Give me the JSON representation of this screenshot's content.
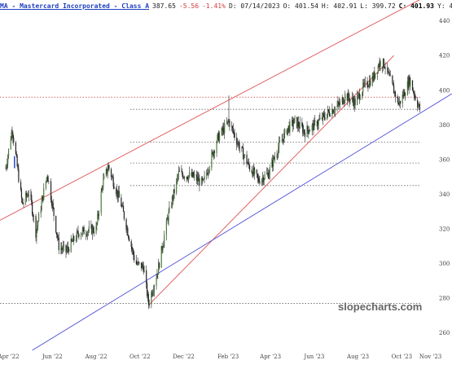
{
  "header": {
    "symbol": "MA - Mastercard Incorporated - Class A",
    "last": "387.65",
    "change": "-5.56",
    "change_pct": "-1.41%",
    "date": "D: 07/14/2023",
    "open": "O: 401.54",
    "high": "H: 402.91",
    "low": "L: 399.72",
    "close": "C: 401.93",
    "cursor_y": "Y: 4"
  },
  "watermark": "slopecharts.com",
  "chart_data": {
    "type": "candlestick",
    "x_tick_labels": [
      "Apr '22",
      "Jun '22",
      "Aug '22",
      "Oct '22",
      "Dec '22",
      "Feb '23",
      "Apr '23",
      "Jun '23",
      "Aug '23",
      "Oct '23",
      "Nov '23"
    ],
    "y_tick_labels": [
      260,
      280,
      300,
      320,
      340,
      360,
      380,
      400,
      420,
      440
    ],
    "ylim": [
      250,
      445
    ],
    "xlim": [
      "2022-03-20",
      "2023-12-10"
    ],
    "price_path": [
      [
        "2022-03-28",
        355
      ],
      [
        "2022-04-06",
        378
      ],
      [
        "2022-04-20",
        334
      ],
      [
        "2022-04-30",
        342
      ],
      [
        "2022-05-09",
        318
      ],
      [
        "2022-05-25",
        352
      ],
      [
        "2022-06-10",
        310
      ],
      [
        "2022-06-20",
        307
      ],
      [
        "2022-07-08",
        318
      ],
      [
        "2022-08-01",
        320
      ],
      [
        "2022-08-10",
        346
      ],
      [
        "2022-08-18",
        356
      ],
      [
        "2022-09-05",
        334
      ],
      [
        "2022-09-25",
        300
      ],
      [
        "2022-10-06",
        298
      ],
      [
        "2022-10-13",
        277
      ],
      [
        "2022-10-26",
        296
      ],
      [
        "2022-11-08",
        325
      ],
      [
        "2022-11-24",
        352
      ],
      [
        "2022-12-15",
        350
      ],
      [
        "2022-12-28",
        346
      ],
      [
        "2023-01-17",
        372
      ],
      [
        "2023-02-02",
        382
      ],
      [
        "2023-02-14",
        370
      ],
      [
        "2023-03-01",
        357
      ],
      [
        "2023-03-15",
        348
      ],
      [
        "2023-03-29",
        352
      ],
      [
        "2023-04-12",
        367
      ],
      [
        "2023-04-25",
        378
      ],
      [
        "2023-05-05",
        382
      ],
      [
        "2023-05-19",
        376
      ],
      [
        "2023-06-02",
        380
      ],
      [
        "2023-06-20",
        387
      ],
      [
        "2023-07-07",
        392
      ],
      [
        "2023-07-14",
        397
      ],
      [
        "2023-07-28",
        393
      ],
      [
        "2023-08-09",
        402
      ],
      [
        "2023-08-22",
        407
      ],
      [
        "2023-08-31",
        416
      ],
      [
        "2023-09-07",
        415
      ],
      [
        "2023-09-18",
        402
      ],
      [
        "2023-09-27",
        392
      ],
      [
        "2023-10-04",
        398
      ],
      [
        "2023-10-12",
        406
      ],
      [
        "2023-10-20",
        396
      ],
      [
        "2023-10-26",
        389
      ]
    ],
    "spike": {
      "date": "2023-02-02",
      "high": 397
    },
    "horizontal_levels": [
      {
        "value": 396,
        "style": "dotted",
        "color": "#d23c3c"
      },
      {
        "value": 389,
        "style": "dotted",
        "color": "#666666"
      },
      {
        "value": 370,
        "style": "dotted",
        "color": "#666666"
      },
      {
        "value": 358,
        "style": "dotted",
        "color": "#666666"
      },
      {
        "value": 345,
        "style": "dotted",
        "color": "#666666"
      },
      {
        "value": 277,
        "style": "dotted",
        "color": "#666666"
      }
    ],
    "trendlines": [
      {
        "from": [
          "2022-03-20",
          325
        ],
        "to": [
          "2023-12-10",
          462
        ],
        "color": "#e05050",
        "name": "upper-channel-line"
      },
      {
        "from": [
          "2022-10-13",
          276
        ],
        "to": [
          "2023-09-20",
          420
        ],
        "color": "#e05050",
        "name": "rising-support-line"
      },
      {
        "from": [
          "2022-05-04",
          250
        ],
        "to": [
          "2023-12-10",
          398
        ],
        "color": "#4a4ad8",
        "name": "lower-channel-line"
      }
    ],
    "colors": {
      "candle": "#222222",
      "last_marker": "#3355cc",
      "grid": "#666666"
    }
  }
}
